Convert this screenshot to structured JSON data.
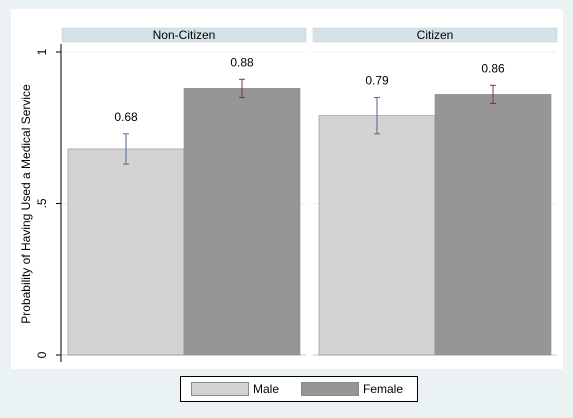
{
  "chart_data": {
    "type": "bar",
    "panels": [
      {
        "title": "Non-Citizen",
        "values": [
          0.68,
          0.88
        ],
        "labels": [
          "0.68",
          "0.88"
        ],
        "ci": [
          [
            0.63,
            0.73
          ],
          [
            0.85,
            0.91
          ]
        ]
      },
      {
        "title": "Citizen",
        "values": [
          0.79,
          0.86
        ],
        "labels": [
          "0.79",
          "0.86"
        ],
        "ci": [
          [
            0.73,
            0.85
          ],
          [
            0.83,
            0.89
          ]
        ]
      }
    ],
    "series": [
      {
        "name": "Male",
        "color": "#d3d3d3",
        "error_color": "#4a6a8a"
      },
      {
        "name": "Female",
        "color": "#969696",
        "error_color": "#8b2e3c"
      }
    ],
    "ylabel": "Probability of Having Used a Medical Service",
    "ylim": [
      0,
      1
    ],
    "yticks": [
      0,
      0.5,
      1
    ],
    "ytick_labels": [
      "0",
      ".5",
      "1"
    ],
    "grid": true,
    "legend_position": "bottom"
  }
}
